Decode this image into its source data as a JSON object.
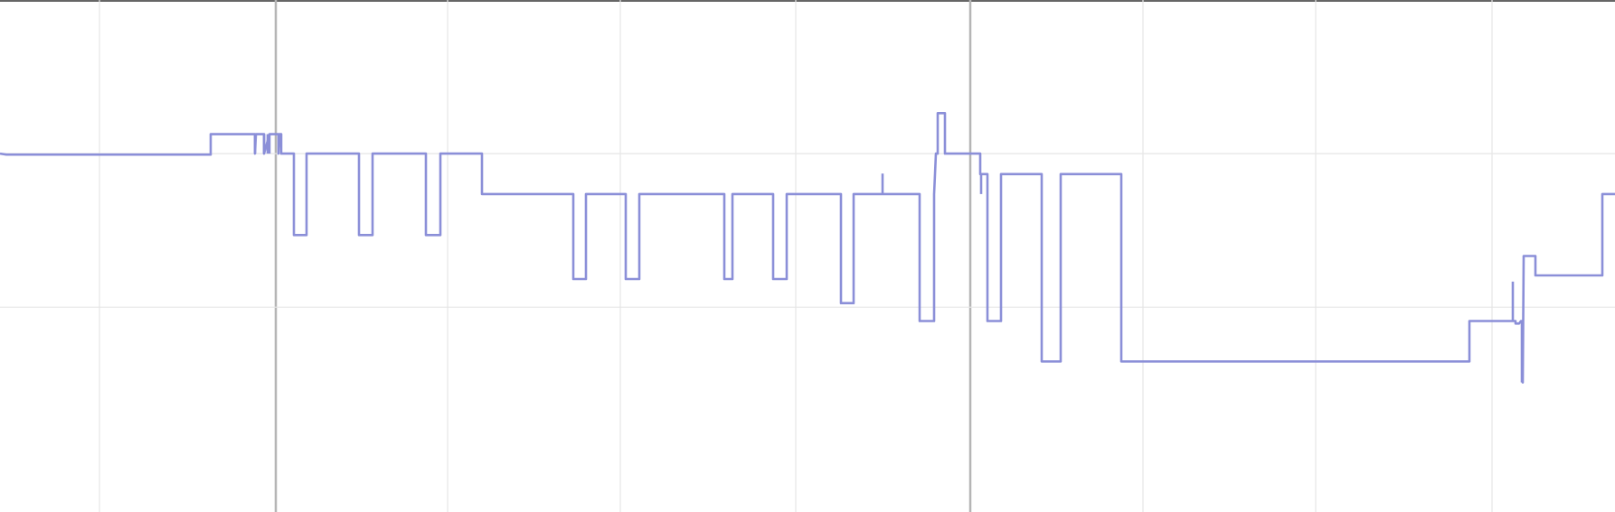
{
  "chart_data": {
    "type": "line",
    "step": "post",
    "title": "",
    "xlabel": "",
    "ylabel": "",
    "grid": true,
    "legend": "none",
    "xlim": [
      0,
      1786
    ],
    "ylim": [
      0,
      10
    ],
    "x_gridlines": [
      110,
      305,
      495,
      686,
      880,
      1073,
      1264,
      1455,
      1650
    ],
    "x_markers": [
      305,
      1073
    ],
    "y_gridlines": [
      7,
      4
    ],
    "series": [
      {
        "color": "#8b8fd8",
        "points": [
          [
            0,
            7
          ],
          [
            7,
            6.98
          ],
          [
            233,
            6.98
          ],
          [
            233,
            7.38
          ],
          [
            282,
            7.38
          ],
          [
            282,
            7
          ],
          [
            283,
            7.38
          ],
          [
            292,
            7.38
          ],
          [
            292,
            7
          ],
          [
            298,
            7.38
          ],
          [
            308,
            7.38
          ],
          [
            308,
            7
          ],
          [
            309,
            7.38
          ],
          [
            311,
            7.38
          ],
          [
            311,
            7
          ],
          [
            325,
            7
          ],
          [
            325,
            5.41
          ],
          [
            339,
            5.41
          ],
          [
            339,
            7
          ],
          [
            397,
            7
          ],
          [
            397,
            5.41
          ],
          [
            412,
            5.41
          ],
          [
            412,
            7
          ],
          [
            471,
            7
          ],
          [
            471,
            5.41
          ],
          [
            487,
            5.41
          ],
          [
            487,
            7
          ],
          [
            533,
            7
          ],
          [
            533,
            6.21
          ],
          [
            634,
            6.21
          ],
          [
            634,
            4.55
          ],
          [
            648,
            4.55
          ],
          [
            648,
            6.21
          ],
          [
            692,
            6.21
          ],
          [
            692,
            4.55
          ],
          [
            707,
            4.55
          ],
          [
            707,
            6.21
          ],
          [
            801,
            6.21
          ],
          [
            801,
            4.55
          ],
          [
            810,
            4.55
          ],
          [
            810,
            6.21
          ],
          [
            855,
            6.21
          ],
          [
            855,
            4.55
          ],
          [
            870,
            4.55
          ],
          [
            870,
            6.21
          ],
          [
            930,
            6.21
          ],
          [
            930,
            4.08
          ],
          [
            944,
            4.08
          ],
          [
            944,
            6.21
          ],
          [
            1017,
            6.21
          ],
          [
            1017,
            3.73
          ],
          [
            1033,
            3.73
          ],
          [
            1033,
            6.21
          ],
          [
            1034,
            6.6
          ],
          [
            1035,
            7
          ],
          [
            1037,
            7
          ],
          [
            1037,
            7.79
          ],
          [
            1045,
            7.79
          ],
          [
            1045,
            7
          ],
          [
            1084,
            7
          ],
          [
            1084,
            6.6
          ],
          [
            1092,
            6.6
          ],
          [
            1092,
            3.73
          ],
          [
            1107,
            3.73
          ],
          [
            1107,
            6.6
          ],
          [
            1152,
            6.6
          ],
          [
            1152,
            2.94
          ],
          [
            1173,
            2.94
          ],
          [
            1173,
            6.6
          ],
          [
            1240,
            6.6
          ],
          [
            1240,
            2.94
          ],
          [
            1625,
            2.94
          ],
          [
            1625,
            3.73
          ],
          [
            1676,
            3.73
          ],
          [
            1676,
            3.68
          ],
          [
            1680,
            3.68
          ],
          [
            1682,
            3.73
          ],
          [
            1684,
            3.73
          ],
          [
            1684,
            2.53
          ],
          [
            1685,
            5
          ],
          [
            1698,
            5
          ],
          [
            1698,
            4.62
          ],
          [
            1772,
            4.62
          ],
          [
            1772,
            6.21
          ],
          [
            1786,
            6.21
          ]
        ],
        "spikes": [
          [
            282,
            7,
            7.38
          ],
          [
            292,
            7,
            7.38
          ],
          [
            296,
            7,
            7.38
          ],
          [
            298,
            7,
            7.38
          ],
          [
            976,
            6.21,
            6.61
          ],
          [
            1085,
            6.21,
            6.6
          ],
          [
            1673,
            3.73,
            4.5
          ],
          [
            1683,
            2.53,
            3.73
          ]
        ]
      }
    ]
  }
}
